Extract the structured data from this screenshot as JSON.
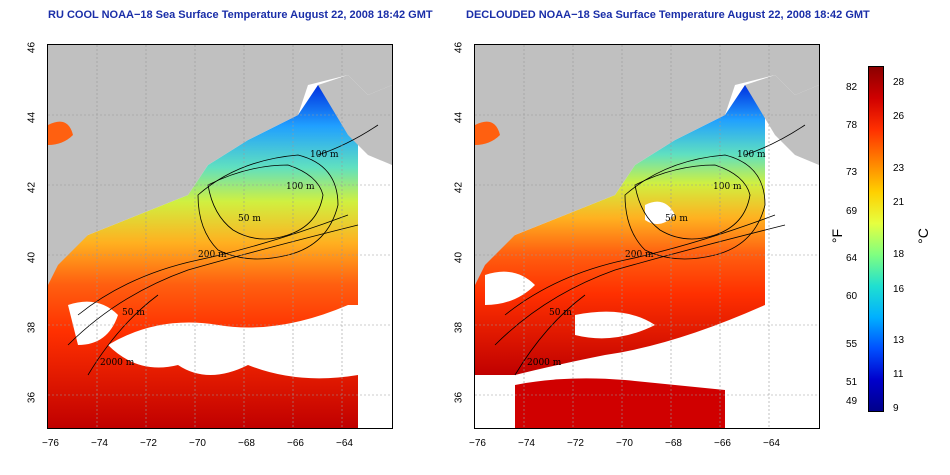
{
  "panels": [
    {
      "title": "RU COOL NOAA−18 Sea Surface Temperature August 22, 2008 18:42 GMT",
      "variant": "cool",
      "contour_labels": [
        "100 m",
        "100 m",
        "50 m",
        "200 m",
        "50 m",
        "2000 m"
      ]
    },
    {
      "title": "DECLOUDED NOAA−18 Sea Surface Temperature August 22, 2008 18:42 GMT",
      "variant": "declouded",
      "contour_labels": [
        "100 m",
        "100 m",
        "50 m",
        "200 m",
        "50 m",
        "2000 m"
      ]
    }
  ],
  "axes": {
    "x_ticks": [
      "−76",
      "−74",
      "−72",
      "−70",
      "−68",
      "−66",
      "−64"
    ],
    "y_ticks": [
      "46",
      "44",
      "42",
      "40",
      "38",
      "36"
    ]
  },
  "colorbar": {
    "unit_f": "°F",
    "unit_c": "°C",
    "f_labels": [
      "82",
      "78",
      "73",
      "69",
      "64",
      "60",
      "55",
      "51",
      "49"
    ],
    "c_labels": [
      "28",
      "26",
      "23",
      "21",
      "18",
      "16",
      "13",
      "11",
      "9"
    ],
    "colors": [
      "#8b0000",
      "#d00000",
      "#ff3000",
      "#ff8000",
      "#ffd000",
      "#e6ff40",
      "#80ff80",
      "#20e0d0",
      "#00b0ff",
      "#0050ff",
      "#0000cc",
      "#00008b"
    ]
  },
  "colors": {
    "land": "#c0c0c0",
    "no_data": "#ffffff"
  }
}
